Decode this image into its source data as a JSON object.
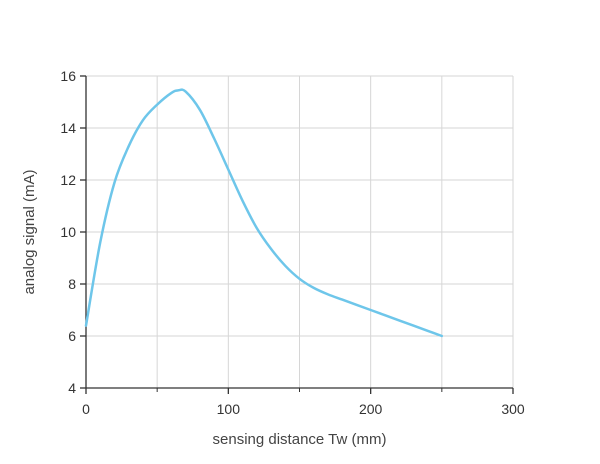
{
  "chart_data": {
    "type": "line",
    "xlabel": "sensing distance Tw (mm)",
    "ylabel": "analog signal (mA)",
    "xlim": [
      0,
      300
    ],
    "ylim": [
      4,
      16
    ],
    "xticks": [
      0,
      100,
      200,
      300
    ],
    "yticks": [
      4,
      6,
      8,
      10,
      12,
      14,
      16
    ],
    "grid": true,
    "colors": {
      "series": "#6ec6ea",
      "grid": "#d6d6d6",
      "axis": "#333333"
    },
    "series": [
      {
        "x": [
          0,
          10,
          20,
          30,
          40,
          50,
          60,
          65,
          70,
          80,
          90,
          100,
          110,
          120,
          130,
          140,
          150,
          160,
          170,
          180,
          190,
          200,
          210,
          220,
          230,
          240,
          250
        ],
        "y": [
          6.4,
          9.6,
          11.9,
          13.3,
          14.3,
          14.9,
          15.35,
          15.45,
          15.4,
          14.7,
          13.6,
          12.4,
          11.2,
          10.15,
          9.35,
          8.7,
          8.2,
          7.85,
          7.6,
          7.4,
          7.2,
          7.0,
          6.8,
          6.6,
          6.4,
          6.2,
          6.0
        ]
      }
    ]
  }
}
